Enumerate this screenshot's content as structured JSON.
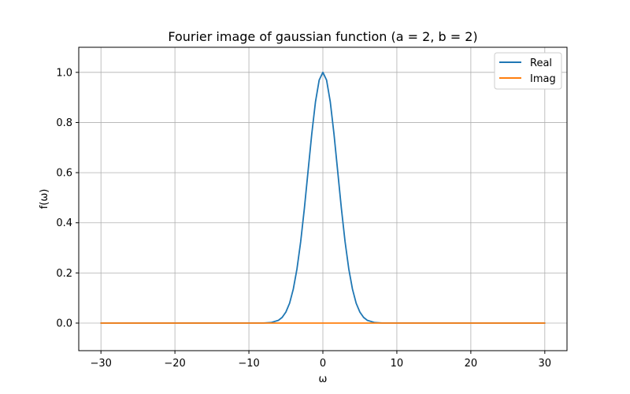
{
  "chart_data": {
    "type": "line",
    "title": "Fourier image of gaussian function (a = 2, b = 2)",
    "xlabel": "ω",
    "ylabel": "f(ω)",
    "xlim": [
      -33,
      33
    ],
    "ylim": [
      -0.11,
      1.1
    ],
    "xticks": [
      -30,
      -20,
      -10,
      0,
      10,
      20,
      30
    ],
    "xtick_labels": [
      "−30",
      "−20",
      "−10",
      "0",
      "10",
      "20",
      "30"
    ],
    "yticks": [
      0.0,
      0.2,
      0.4,
      0.6,
      0.8,
      1.0
    ],
    "ytick_labels": [
      "0.0",
      "0.2",
      "0.4",
      "0.6",
      "0.8",
      "1.0"
    ],
    "grid": true,
    "legend": "top-right",
    "x": [
      -30,
      -8,
      -7,
      -6,
      -5.5,
      -5,
      -4.5,
      -4,
      -3.5,
      -3,
      -2.5,
      -2,
      -1.5,
      -1,
      -0.5,
      0,
      0.5,
      1,
      1.5,
      2,
      2.5,
      3,
      3.5,
      4,
      4.5,
      5,
      5.5,
      6,
      7,
      8,
      30
    ],
    "series": [
      {
        "name": "Real",
        "color": "#1f77b4",
        "values": [
          0,
          0.0003,
          0.0022,
          0.0111,
          0.0228,
          0.0439,
          0.0792,
          0.1353,
          0.2163,
          0.3247,
          0.4578,
          0.6065,
          0.7548,
          0.8825,
          0.9692,
          1.0,
          0.9692,
          0.8825,
          0.7548,
          0.6065,
          0.4578,
          0.3247,
          0.2163,
          0.1353,
          0.0792,
          0.0439,
          0.0228,
          0.0111,
          0.0022,
          0.0003,
          0
        ]
      },
      {
        "name": "Imag",
        "color": "#ff7f0e",
        "values": [
          0,
          0,
          0,
          0,
          0,
          0,
          0,
          0,
          0,
          0,
          0,
          0,
          0,
          0,
          0,
          0,
          0,
          0,
          0,
          0,
          0,
          0,
          0,
          0,
          0,
          0,
          0,
          0,
          0,
          0,
          0
        ]
      }
    ]
  }
}
